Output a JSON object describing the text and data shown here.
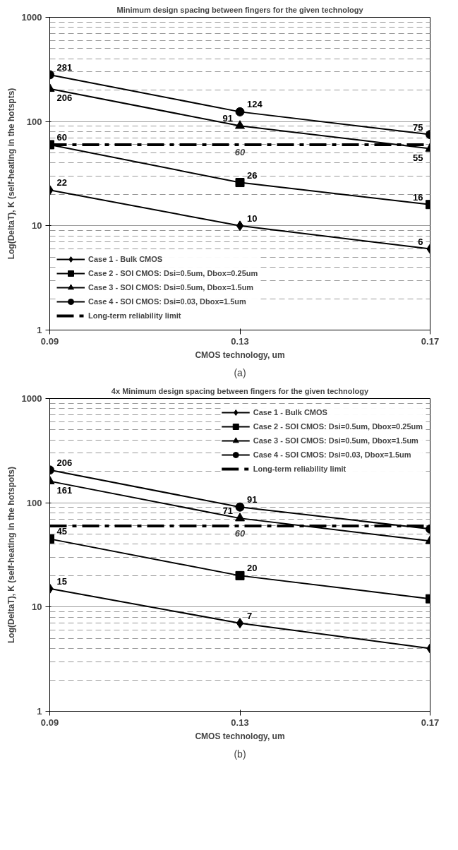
{
  "chart_data": [
    {
      "type": "line",
      "title": "Minimum design spacing between fingers for the given technology",
      "xlabel": "CMOS technology, um",
      "ylabel": "Log(DeltaT), K (self-heating in the hotspts)",
      "x": [
        0.09,
        0.13,
        0.17
      ],
      "xlim": [
        0.09,
        0.17
      ],
      "xticks": [
        0.09,
        0.13,
        0.17
      ],
      "ylim": [
        1,
        1000
      ],
      "yticks": [
        1,
        10,
        100,
        1000
      ],
      "log": true,
      "grid": "y",
      "legend": "bottom left",
      "data_labels": true,
      "series": [
        {
          "name": "Case 1 - Bulk CMOS",
          "color": "#000000",
          "marker": "diamond",
          "values": [
            22,
            10,
            6
          ]
        },
        {
          "name": "Case 2 - SOI CMOS: Dsi=0.5um, Dbox=0.25um",
          "color": "#000000",
          "marker": "square",
          "values": [
            60,
            26,
            16
          ]
        },
        {
          "name": "Case 3 - SOI CMOS: Dsi=0.5um, Dbox=1.5um",
          "color": "#000000",
          "marker": "triangle",
          "values": [
            206,
            91,
            55
          ]
        },
        {
          "name": "Case 4 - SOI CMOS: Dsi=0.03, Dbox=1.5um",
          "color": "#000000",
          "marker": "circle",
          "values": [
            281,
            124,
            75
          ]
        }
      ],
      "ref_lines": [
        {
          "axis": "y",
          "value": 60,
          "label": "Long-term reliability limit",
          "color": "#000000",
          "line_style": "dashdot"
        }
      ],
      "annotations": [
        {
          "text": "60",
          "x": 0.13,
          "y": 60
        },
        "(a)"
      ]
    },
    {
      "type": "line",
      "title": "4x Minimum design spacing between fingers for the given technology",
      "xlabel": "CMOS technology, um",
      "ylabel": "Log(DeltaT), K (self-heating in the hotspots)",
      "x": [
        0.09,
        0.13,
        0.17
      ],
      "xlim": [
        0.09,
        0.17
      ],
      "xticks": [
        0.09,
        0.13,
        0.17
      ],
      "ylim": [
        1,
        1000
      ],
      "yticks": [
        1,
        10,
        100,
        1000
      ],
      "log": true,
      "grid": "y",
      "legend": "top right",
      "series": [
        {
          "name": "Case 1 - Bulk CMOS",
          "color": "#000000",
          "marker": "diamond",
          "values": [
            15,
            7,
            4
          ],
          "value_labels": [
            "15",
            "7",
            null
          ]
        },
        {
          "name": "Case 2 - SOI CMOS: Dsi=0.5um, Dbox=0.25um",
          "color": "#000000",
          "marker": "square",
          "values": [
            45,
            20,
            12
          ],
          "value_labels": [
            "45",
            "20",
            null
          ]
        },
        {
          "name": "Case 3 - SOI CMOS: Dsi=0.5um, Dbox=1.5um",
          "color": "#000000",
          "marker": "triangle",
          "values": [
            161,
            71,
            43
          ],
          "value_labels": [
            "161",
            "71",
            null
          ]
        },
        {
          "name": "Case 4 - SOI CMOS: Dsi=0.03, Dbox=1.5um",
          "color": "#000000",
          "marker": "circle",
          "values": [
            206,
            91,
            56
          ],
          "value_labels": [
            "206",
            "91",
            null
          ]
        }
      ],
      "ref_lines": [
        {
          "axis": "y",
          "value": 60,
          "label": "Long-term reliability limit",
          "color": "#000000",
          "line_style": "dashdot"
        }
      ],
      "annotations": [
        {
          "text": "60",
          "x": 0.13,
          "y": 60
        },
        "(b)"
      ]
    }
  ]
}
